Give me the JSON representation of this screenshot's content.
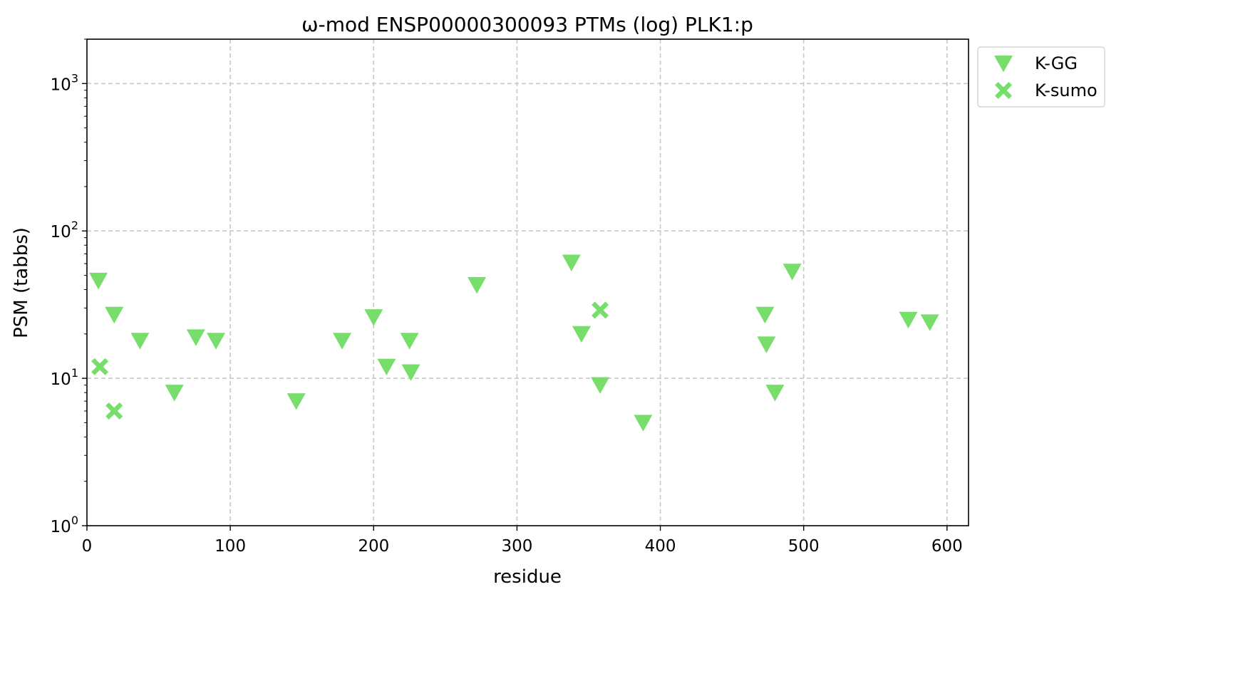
{
  "chart_data": {
    "type": "scatter",
    "title": "ω-mod ENSP00000300093 PTMs (log) PLK1:p",
    "xlabel": "residue",
    "ylabel": "PSM (tabbs)",
    "xlim": [
      0,
      615
    ],
    "ylim": [
      1,
      2000
    ],
    "yscale": "log",
    "grid": true,
    "legend_placement": "outside-top-right",
    "x_ticks": [
      0,
      100,
      200,
      300,
      400,
      500,
      600
    ],
    "x_tick_labels": [
      "0",
      "100",
      "200",
      "300",
      "400",
      "500",
      "600"
    ],
    "y_ticks": [
      1,
      10,
      100,
      1000
    ],
    "y_tick_labels": [
      {
        "base": "10",
        "exp": "0"
      },
      {
        "base": "10",
        "exp": "1"
      },
      {
        "base": "10",
        "exp": "2"
      },
      {
        "base": "10",
        "exp": "3"
      }
    ],
    "color": "#77dd6b",
    "series": [
      {
        "name": "K-GG",
        "marker": "triangle-down",
        "color": "#77dd6b",
        "points": [
          {
            "x": 8,
            "y": 46
          },
          {
            "x": 19,
            "y": 27
          },
          {
            "x": 37,
            "y": 18
          },
          {
            "x": 61,
            "y": 8
          },
          {
            "x": 76,
            "y": 19
          },
          {
            "x": 90,
            "y": 18
          },
          {
            "x": 146,
            "y": 7
          },
          {
            "x": 178,
            "y": 18
          },
          {
            "x": 200,
            "y": 26
          },
          {
            "x": 209,
            "y": 12
          },
          {
            "x": 225,
            "y": 18
          },
          {
            "x": 226,
            "y": 11
          },
          {
            "x": 272,
            "y": 43
          },
          {
            "x": 338,
            "y": 61
          },
          {
            "x": 345,
            "y": 20
          },
          {
            "x": 358,
            "y": 9
          },
          {
            "x": 388,
            "y": 5
          },
          {
            "x": 473,
            "y": 27
          },
          {
            "x": 474,
            "y": 17
          },
          {
            "x": 480,
            "y": 8
          },
          {
            "x": 492,
            "y": 53
          },
          {
            "x": 573,
            "y": 25
          },
          {
            "x": 588,
            "y": 24
          }
        ]
      },
      {
        "name": "K-sumo",
        "marker": "x-filled",
        "color": "#77dd6b",
        "points": [
          {
            "x": 9,
            "y": 12
          },
          {
            "x": 19,
            "y": 6
          },
          {
            "x": 358,
            "y": 29
          }
        ]
      }
    ]
  }
}
